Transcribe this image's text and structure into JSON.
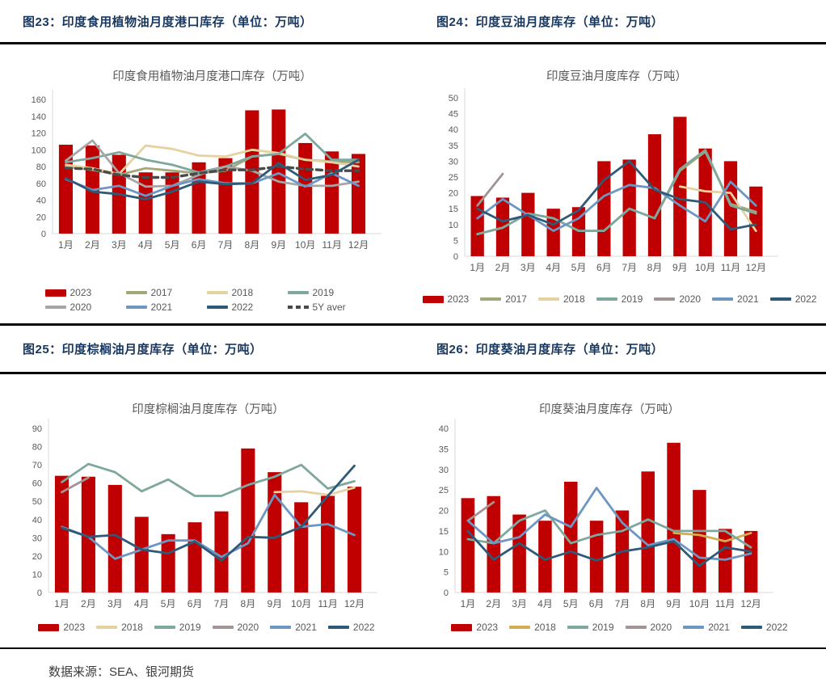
{
  "page": {
    "figures": [
      {
        "label": "图23：印度食用植物油月度港口库存（单位：万吨）"
      },
      {
        "label": "图24：印度豆油月度库存（单位：万吨）"
      },
      {
        "label": "图25：印度棕榈油月度库存（单位：万吨）"
      },
      {
        "label": "图26：印度葵油月度库存（单位：万吨）"
      }
    ],
    "title_color": "#17375E",
    "accent_red": "#C00000"
  },
  "footer": {
    "text": "数据来源：SEA、银河期货"
  },
  "chart_data": [
    {
      "type": "bar+line",
      "title": "印度食用植物油月度港口库存（万吨）",
      "categories": [
        "1月",
        "2月",
        "3月",
        "4月",
        "5月",
        "6月",
        "7月",
        "8月",
        "9月",
        "10月",
        "11月",
        "12月"
      ],
      "ylim": [
        0,
        160
      ],
      "ystep": 20,
      "grid": false,
      "legend_position": "bottom",
      "bar_series": {
        "name": "2023",
        "color": "#C00000",
        "values": [
          106,
          105,
          94,
          73,
          73,
          85,
          90,
          147,
          148,
          108,
          98,
          95
        ]
      },
      "line_series": [
        {
          "name": "2017",
          "color": "#A3A878",
          "values": [
            80,
            76,
            70,
            78,
            75,
            72,
            75,
            92,
            95,
            88,
            86,
            85
          ]
        },
        {
          "name": "2018",
          "color": "#E6D2A0",
          "values": [
            82,
            78,
            71,
            105,
            101,
            93,
            92,
            100,
            96,
            88,
            85,
            80
          ]
        },
        {
          "name": "2019",
          "color": "#7EA79D",
          "values": [
            85,
            90,
            97,
            88,
            82,
            73,
            80,
            92,
            95,
            119,
            88,
            88
          ]
        },
        {
          "name": "2020",
          "color": "#A6A6A6",
          "values": [
            87,
            111,
            72,
            56,
            57,
            70,
            80,
            75,
            62,
            57,
            57,
            62
          ]
        },
        {
          "name": "5Y aver",
          "color": "#4A4A4A",
          "dashed": true,
          "values": [
            78,
            77,
            70,
            67,
            67,
            72,
            76,
            76,
            80,
            77,
            75,
            75
          ]
        },
        {
          "name": "2021",
          "color": "#6D96C2",
          "values": [
            65,
            52,
            57,
            45,
            57,
            65,
            60,
            60,
            72,
            56,
            72,
            57
          ]
        },
        {
          "name": "2022",
          "color": "#2E5A78",
          "values": [
            66,
            50,
            47,
            41,
            50,
            62,
            59,
            60,
            84,
            64,
            70,
            88
          ]
        }
      ],
      "legend_rows": [
        [
          "2023",
          "2017",
          "2018",
          "2019"
        ],
        [
          "2020",
          "2021",
          "2022",
          "5Y aver"
        ]
      ]
    },
    {
      "type": "bar+line",
      "title": "印度豆油月度库存（万吨）",
      "categories": [
        "1月",
        "2月",
        "3月",
        "4月",
        "5月",
        "6月",
        "7月",
        "8月",
        "9月",
        "10月",
        "11月",
        "12月"
      ],
      "ylim": [
        0,
        50
      ],
      "ystep": 5,
      "grid": false,
      "legend_position": "bottom",
      "bar_series": {
        "name": "2023",
        "color": "#C00000",
        "values": [
          19,
          18.5,
          20,
          15,
          15.5,
          30,
          30.5,
          38.5,
          44,
          34,
          30,
          22
        ]
      },
      "line_series": [
        {
          "name": "2017",
          "color": "#A3A878",
          "values": [
            7,
            9,
            13.5,
            12,
            8,
            8,
            15,
            12,
            27,
            33,
            16.5,
            14
          ]
        },
        {
          "name": "2018",
          "color": "#E6D2A0",
          "values": [
            null,
            null,
            null,
            null,
            null,
            null,
            null,
            null,
            22,
            20.5,
            20,
            8
          ]
        },
        {
          "name": "2019",
          "color": "#7EA79D",
          "values": [
            7,
            9,
            13.5,
            12,
            8,
            8,
            15,
            12,
            27.5,
            33.5,
            16,
            13.5
          ]
        },
        {
          "name": "2020",
          "color": "#A09494",
          "values": [
            16,
            26,
            null,
            null,
            null,
            null,
            null,
            null,
            null,
            null,
            null,
            null
          ]
        },
        {
          "name": "2021",
          "color": "#6D96C2",
          "values": [
            12,
            18,
            13,
            8,
            12,
            19,
            22.5,
            21.5,
            16,
            11,
            23.5,
            16
          ]
        },
        {
          "name": "2022",
          "color": "#2E5A78",
          "values": [
            15,
            11,
            13,
            10,
            14.5,
            24,
            30,
            21,
            18,
            17,
            8.5,
            10
          ]
        }
      ],
      "legend_rows": [
        [
          "2023",
          "2017",
          "2018",
          "2019",
          "2020",
          "2021",
          "2022"
        ]
      ]
    },
    {
      "type": "bar+line",
      "title": "印度棕榈油月度库存（万吨）",
      "categories": [
        "1月",
        "2月",
        "3月",
        "4月",
        "5月",
        "6月",
        "7月",
        "8月",
        "9月",
        "10月",
        "11月",
        "12月"
      ],
      "ylim": [
        0,
        90
      ],
      "ystep": 10,
      "grid": false,
      "legend_position": "bottom",
      "bar_series": {
        "name": "2023",
        "color": "#C00000",
        "values": [
          64,
          63.5,
          59,
          41.5,
          32,
          38.5,
          44.5,
          79,
          66,
          49.5,
          53,
          58
        ]
      },
      "line_series": [
        {
          "name": "2018",
          "color": "#E6D2A0",
          "values": [
            null,
            null,
            null,
            null,
            null,
            null,
            null,
            null,
            55,
            55.5,
            53.5,
            57.5
          ]
        },
        {
          "name": "2019",
          "color": "#7EA79D",
          "values": [
            60.5,
            70.5,
            66,
            55.5,
            62,
            53,
            53,
            59,
            63.5,
            70,
            57,
            61
          ]
        },
        {
          "name": "2020",
          "color": "#A09494",
          "values": [
            55,
            63,
            null,
            null,
            null,
            null,
            null,
            null,
            null,
            null,
            null,
            null
          ]
        },
        {
          "name": "2021",
          "color": "#6D96C2",
          "values": [
            36,
            30.5,
            18.5,
            23.5,
            28.5,
            28.5,
            19.5,
            27,
            53.5,
            36,
            37.5,
            31.5
          ]
        },
        {
          "name": "2022",
          "color": "#2E5A78",
          "values": [
            35.5,
            30.5,
            31.5,
            23.5,
            21.5,
            28,
            17.5,
            30.5,
            30,
            36,
            53,
            69.5
          ]
        }
      ],
      "legend_rows": [
        [
          "2023",
          "2018",
          "2019",
          "2020",
          "2021",
          "2022"
        ]
      ]
    },
    {
      "type": "bar+line",
      "title": "印度葵油月度库存（万吨）",
      "categories": [
        "1月",
        "2月",
        "3月",
        "4月",
        "5月",
        "6月",
        "7月",
        "8月",
        "9月",
        "10月",
        "11月",
        "12月"
      ],
      "ylim": [
        0,
        40
      ],
      "ystep": 5,
      "grid": false,
      "legend_position": "bottom",
      "bar_series": {
        "name": "2023",
        "color": "#C00000",
        "values": [
          23,
          23.5,
          19,
          17.5,
          27,
          17.5,
          20,
          29.5,
          36.5,
          25,
          15.5,
          15
        ]
      },
      "line_series": [
        {
          "name": "2018",
          "color": "#D4AC52",
          "values": [
            null,
            null,
            null,
            null,
            null,
            null,
            null,
            null,
            14.5,
            14,
            12.5,
            14.5
          ]
        },
        {
          "name": "2019",
          "color": "#7EA79D",
          "values": [
            13,
            12,
            17.5,
            20,
            12,
            14,
            15,
            17.8,
            15,
            15,
            15,
            11
          ]
        },
        {
          "name": "2020",
          "color": "#A09494",
          "values": [
            17.5,
            22,
            null,
            null,
            null,
            null,
            null,
            null,
            null,
            null,
            null,
            null
          ]
        },
        {
          "name": "2021",
          "color": "#6D96C2",
          "values": [
            17.5,
            12,
            13.5,
            19,
            16,
            25.5,
            17,
            11.5,
            13,
            8.5,
            8,
            9.5
          ]
        },
        {
          "name": "2022",
          "color": "#2E5A78",
          "values": [
            15,
            8,
            12,
            8,
            10,
            7.8,
            10,
            11,
            12.5,
            6.5,
            11,
            10
          ]
        }
      ],
      "legend_rows": [
        [
          "2023",
          "2018",
          "2019",
          "2020",
          "2021",
          "2022"
        ]
      ]
    }
  ]
}
